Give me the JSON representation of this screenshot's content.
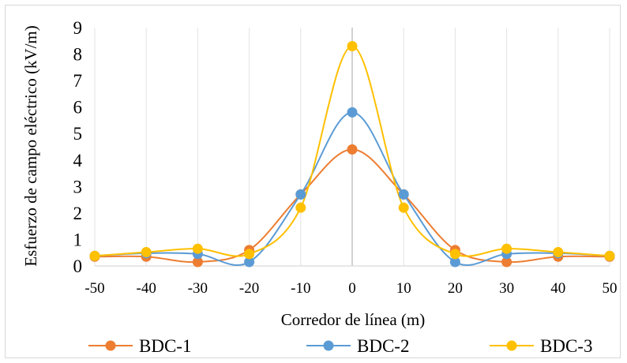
{
  "chart_data": {
    "type": "line",
    "xlabel": "Corredor de línea (m)",
    "ylabel": "Esfuerzo de campo eléctrico (kV/m)",
    "x": [
      -50,
      -40,
      -30,
      -20,
      -10,
      0,
      10,
      20,
      30,
      40,
      50
    ],
    "xticks": [
      "-50",
      "-40",
      "-30",
      "-20",
      "-10",
      "0",
      "10",
      "20",
      "30",
      "40",
      "50"
    ],
    "yticks": [
      "0",
      "1",
      "2",
      "3",
      "4",
      "5",
      "6",
      "7",
      "8",
      "9"
    ],
    "xlim": [
      -50,
      50
    ],
    "ylim": [
      0,
      9
    ],
    "grid": "vertical",
    "legend_position": "bottom",
    "series": [
      {
        "name": "BDC-1",
        "color": "#ED7D31",
        "values": [
          0.35,
          0.35,
          0.15,
          0.6,
          2.7,
          4.4,
          2.7,
          0.6,
          0.15,
          0.35,
          0.35
        ]
      },
      {
        "name": "BDC-2",
        "color": "#5B9BD5",
        "values": [
          0.38,
          0.48,
          0.45,
          0.15,
          2.7,
          5.8,
          2.7,
          0.15,
          0.45,
          0.48,
          0.38
        ]
      },
      {
        "name": "BDC-3",
        "color": "#FFC000",
        "values": [
          0.38,
          0.52,
          0.65,
          0.45,
          2.2,
          8.3,
          2.2,
          0.45,
          0.65,
          0.52,
          0.38
        ]
      }
    ]
  }
}
